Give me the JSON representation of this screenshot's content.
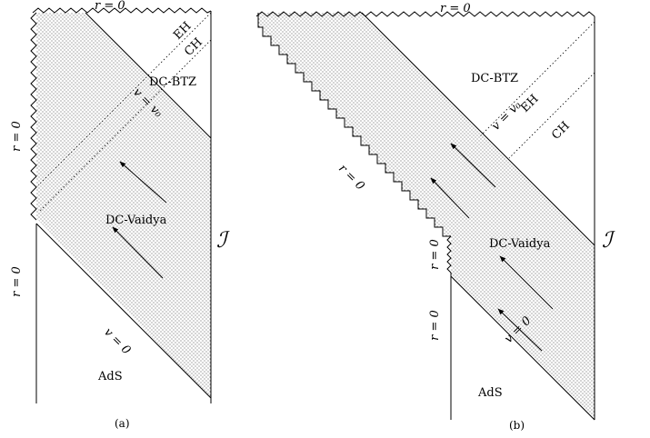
{
  "diagram_a": {
    "caption": "(a)",
    "labels": {
      "top_r0": "r = 0",
      "left_r0_upper": "r = 0",
      "left_r0_lower": "r = 0",
      "eh": "EH",
      "ch": "CH",
      "dc_btz": "DC-BTZ",
      "v_v0": "v = v₀",
      "dc_vaidya": "DC-Vaidya",
      "v_0": "v = 0",
      "ads": "AdS",
      "scri": "ℐ"
    }
  },
  "diagram_b": {
    "caption": "(b)",
    "labels": {
      "top_r0": "r = 0",
      "dc_btz": "DC-BTZ",
      "eh": "EH",
      "ch": "CH",
      "v_v0": "v = v₀",
      "diag_r0": "r = 0",
      "dc_vaidya": "DC-Vaidya",
      "vert_r0_upper": "r = 0",
      "vert_r0_lower": "r = 0",
      "v_0": "v = 0",
      "ads": "AdS",
      "scri": "ℐ"
    }
  }
}
